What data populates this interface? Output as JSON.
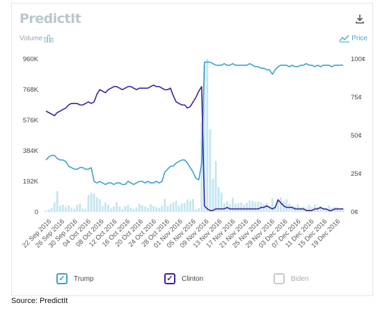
{
  "brand": {
    "logo_text": "PredictIt"
  },
  "toggles": {
    "volume_label": "Volume",
    "price_label": "Price",
    "icons": {
      "volume": "bar-chart-icon",
      "price": "line-chart-icon",
      "download": "download-icon"
    }
  },
  "legend": [
    {
      "name": "Trump",
      "checked": true,
      "color": "#3a9fcd"
    },
    {
      "name": "Clinton",
      "checked": true,
      "color": "#3d1e9c"
    },
    {
      "name": "Biden",
      "checked": false,
      "color": "#c8c8c8"
    }
  ],
  "source": "Source: PredictIt",
  "colors": {
    "trump": "#3a9fcd",
    "clinton": "#3d1e9c",
    "volume": "#c3e6f1",
    "biden": "#c8c8c8"
  },
  "chart_data": {
    "type": "line",
    "left_axis": {
      "label": "Volume",
      "ticks": [
        "960K",
        "768K",
        "576K",
        "384K",
        "192K",
        "0"
      ],
      "values": [
        960000,
        768000,
        576000,
        384000,
        192000,
        0
      ],
      "range": [
        0,
        960000
      ]
    },
    "right_axis": {
      "label": "Price",
      "ticks": [
        "100¢",
        "75¢",
        "50¢",
        "25¢",
        "0¢"
      ],
      "values": [
        100,
        75,
        50,
        25,
        0
      ],
      "range": [
        0,
        100
      ]
    },
    "x_tick_labels": [
      "22 Sep 2016",
      "26 Sep 2016",
      "30 Sep 2016",
      "04 Oct 2016",
      "08 Oct 2016",
      "12 Oct 2016",
      "16 Oct 2016",
      "20 Oct 2016",
      "24 Oct 2016",
      "28 Oct 2016",
      "01 Nov 2016",
      "05 Nov 2016",
      "09 Nov 2016",
      "13 Nov 2016",
      "17 Nov 2016",
      "21 Nov 2016",
      "25 Nov 2016",
      "29 Nov 2016",
      "03 Dec 2016",
      "07 Dec 2016",
      "11 Dec 2016",
      "15 Dec 2016",
      "19 Dec 2016"
    ],
    "series": [
      {
        "name": "Trump",
        "axis": "right",
        "values": [
          34,
          36,
          37,
          37,
          35,
          34,
          34,
          33,
          30,
          29,
          28,
          28,
          29,
          29,
          28,
          28,
          29,
          20,
          19,
          20,
          19,
          18,
          19,
          19,
          18,
          19,
          19,
          18,
          18,
          20,
          19,
          18,
          19,
          20,
          20,
          19,
          20,
          19,
          19,
          20,
          19,
          20,
          26,
          28,
          30,
          30,
          32,
          33,
          34,
          34,
          32,
          29,
          26,
          22,
          21,
          32,
          98,
          98,
          98,
          97,
          96,
          96,
          96,
          97,
          96,
          96,
          97,
          96,
          96,
          96,
          96,
          96,
          97,
          96,
          95,
          95,
          94,
          94,
          93,
          93,
          90,
          93,
          95,
          96,
          96,
          96,
          95,
          96,
          95,
          95,
          96,
          96,
          97,
          96,
          96,
          95,
          96,
          95,
          96,
          96,
          96,
          95,
          96,
          96,
          96,
          96
        ]
      },
      {
        "name": "Clinton",
        "axis": "right",
        "values": [
          66,
          65,
          64,
          63,
          65,
          66,
          67,
          68,
          70,
          71,
          71,
          71,
          70,
          70,
          71,
          72,
          71,
          72,
          77,
          80,
          79,
          78,
          80,
          81,
          82,
          82,
          81,
          80,
          81,
          82,
          82,
          81,
          80,
          81,
          81,
          81,
          81,
          82,
          83,
          82,
          82,
          81,
          80,
          80,
          81,
          76,
          72,
          71,
          70,
          70,
          68,
          69,
          72,
          75,
          79,
          82,
          4,
          2,
          1,
          1,
          2,
          2,
          2,
          2,
          3,
          2,
          2,
          2,
          2,
          2,
          2,
          2,
          2,
          2,
          2,
          2,
          3,
          3,
          4,
          3,
          2,
          3,
          8,
          6,
          4,
          3,
          3,
          3,
          2,
          2,
          2,
          2,
          1,
          1,
          1,
          2,
          2,
          3,
          2,
          2,
          1,
          1,
          2,
          2,
          2,
          2
        ]
      },
      {
        "name": "Volume",
        "axis": "left",
        "type": "bar",
        "values": [
          8000,
          15000,
          25000,
          60000,
          130000,
          40000,
          45000,
          30000,
          42000,
          28000,
          20000,
          45000,
          52000,
          22000,
          18000,
          105000,
          120000,
          115000,
          92000,
          80000,
          38000,
          60000,
          45000,
          22000,
          35000,
          62000,
          35000,
          18000,
          38000,
          45000,
          28000,
          18000,
          28000,
          52000,
          42000,
          35000,
          25000,
          48000,
          38000,
          30000,
          25000,
          38000,
          82000,
          36000,
          50000,
          60000,
          70000,
          40000,
          52000,
          58000,
          78000,
          70000,
          82000,
          18000,
          25000,
          560000,
          920000,
          960000,
          520000,
          210000,
          320000,
          155000,
          122000,
          56000,
          68000,
          48000,
          90000,
          52000,
          56000,
          60000,
          45000,
          58000,
          72000,
          70000,
          62000,
          65000,
          60000,
          48000,
          55000,
          38000,
          85000,
          40000,
          72000,
          92000,
          68000,
          80000,
          52000,
          40000,
          36000,
          48000,
          30000,
          35000,
          28000,
          44000,
          30000,
          48000,
          32000,
          36000,
          25000,
          18000,
          40000,
          28000,
          32000,
          30000,
          22000,
          25000
        ]
      }
    ]
  }
}
